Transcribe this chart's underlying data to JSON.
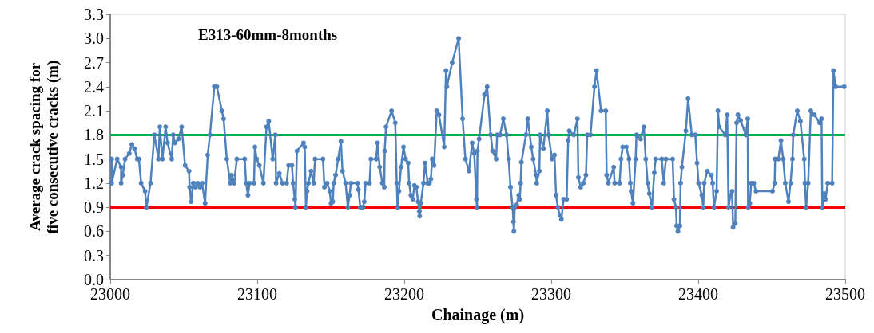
{
  "chart_data": {
    "type": "line",
    "annotations": [
      "E313-60mm-8months"
    ],
    "xlabel": "Chainage (m)",
    "ylabel": "Average crack spacing for\nfive consecutive cracks (m)",
    "series": [
      {
        "color": "#4f81bd",
        "x": [
          23001,
          23001,
          23004.7,
          23007.4,
          23007.4,
          23008.5,
          23010.1,
          23012.9,
          23014.7,
          23016.5,
          23018.3,
          23019.5,
          23021,
          23023.7,
          23024.6,
          23027.4,
          23030,
          23032.8,
          23033.7,
          23035.5,
          23037.7,
          23039,
          23041.8,
          23042.8,
          23044,
          23046.4,
          23048.6,
          23050.9,
          23053.6,
          23054,
          23055,
          23056.5,
          23058,
          23059.5,
          23061,
          23062.5,
          23064.5,
          23066.3,
          23067.8,
          23070.8,
          23072.5,
          23075.9,
          23077.1,
          23079.3,
          23081.6,
          23082.5,
          23084.3,
          23086.1,
          23091.5,
          23092.4,
          23093.7,
          23094.8,
          23097.8,
          23098.4,
          23099.6,
          23101.4,
          23104.2,
          23106.3,
          23107.8,
          23110.5,
          23112.3,
          23112.8,
          23115,
          23117.2,
          23120,
          23121.3,
          23123.6,
          23124.4,
          23125.5,
          23126,
          23127,
          23131.5,
          23132.3,
          23133.1,
          23133.9,
          23134.8,
          23136.6,
          23138.4,
          23139.3,
          23144.7,
          23145.7,
          23147.5,
          23149.3,
          23150.2,
          23151.4,
          23152,
          23153.3,
          23155,
          23156.9,
          23158,
          23160.1,
          23161.6,
          23162.8,
          23163.7,
          23168.2,
          23168.8,
          23170.1,
          23171.9,
          23172.8,
          23173.7,
          23176.4,
          23177.3,
          23180.9,
          23181.8,
          23183.3,
          23185.1,
          23186.4,
          23186.7,
          23187.6,
          23191.4,
          23193.9,
          23194.9,
          23195.4,
          23196.4,
          23197.8,
          23199.5,
          23200.9,
          23202.7,
          23203.3,
          23204.5,
          23205.8,
          23206.9,
          23208.2,
          23209.4,
          23210.3,
          23210.5,
          23211.2,
          23213.1,
          23214.1,
          23216,
          23217.2,
          23218.1,
          23219,
          23220.3,
          23222.1,
          23223.6,
          23227.2,
          23228.4,
          23229,
          23232.6,
          23237,
          23239.7,
          23241.6,
          23244,
          23246.2,
          23247.6,
          23249.1,
          23249.5,
          23249.8,
          23250.9,
          23254.6,
          23256.4,
          23258.8,
          23260.1,
          23262.5,
          23263.2,
          23265.2,
          23267.4,
          23269.6,
          23271,
          23272.3,
          23273.7,
          23274.3,
          23274.6,
          23275.2,
          23276.5,
          23277.9,
          23278.6,
          23279.2,
          23279.7,
          23282.8,
          23284.1,
          23286.4,
          23287.7,
          23289.7,
          23290.1,
          23291.9,
          23292.4,
          23294.6,
          23297.3,
          23298.2,
          23300.5,
          23302.2,
          23303.3,
          23304.5,
          23305.8,
          23306.9,
          23308.4,
          23310.5,
          23311.5,
          23312.2,
          23315.4,
          23317.8,
          23318.5,
          23320,
          23321.8,
          23323.6,
          23324.5,
          23326.7,
          23329.4,
          23330.8,
          23333.9,
          23337.1,
          23337.7,
          23338.9,
          23342.5,
          23343.1,
          23346.5,
          23347.5,
          23348.6,
          23351.1,
          23352.9,
          23353.8,
          23354.3,
          23355.6,
          23357.4,
          23358,
          23360.7,
          23363,
          23364.3,
          23365.6,
          23366.7,
          23368.5,
          23370.1,
          23371,
          23375.2,
          23376.5,
          23378,
          23382.6,
          23383.5,
          23384.9,
          23385.3,
          23386.2,
          23387.5,
          23388,
          23388.9,
          23391.6,
          23393.1,
          23395.6,
          23398,
          23399.2,
          23400.2,
          23402.5,
          23403.4,
          23404,
          23406.2,
          23408.9,
          23409.8,
          23410.7,
          23412.5,
          23413.4,
          23414.3,
          23418.3,
          23419.7,
          23420.6,
          23421.9,
          23423,
          23423.7,
          23425.2,
          23426.1,
          23427,
          23428.8,
          23432.4,
          23433.7,
          23433.9,
          23435.1,
          23436,
          23437.8,
          23439.3,
          23450.5,
          23452,
          23452.3,
          23454.5,
          23456.3,
          23457.8,
          23459.2,
          23461.4,
          23462.8,
          23464.1,
          23464.6,
          23467.4,
          23469.5,
          23472.1,
          23472.6,
          23473.4,
          23474.8,
          23476.6,
          23479,
          23482.6,
          23483.9,
          23484.4,
          23485.7,
          23486.6,
          23488.1,
          23491.1,
          23492,
          23493.5,
          23499.3
        ],
        "values": [
          1.5,
          1.2,
          1.5,
          1.4,
          1.2,
          1.3,
          1.5,
          1.57,
          1.68,
          1.63,
          1.5,
          1.5,
          1.2,
          1.1,
          0.9,
          1.2,
          1.8,
          1.5,
          1.9,
          1.5,
          1.9,
          1.7,
          1.5,
          1.8,
          1.7,
          1.75,
          1.9,
          1.42,
          1.35,
          1.15,
          0.97,
          1.2,
          1.15,
          1.2,
          1.15,
          1.2,
          0.95,
          1.55,
          1.8,
          2.4,
          2.4,
          2.1,
          2.0,
          1.5,
          1.2,
          1.3,
          1.2,
          1.5,
          1.5,
          1.2,
          1.05,
          1.2,
          1.2,
          1.65,
          1.5,
          1.42,
          1.2,
          1.9,
          1.97,
          1.5,
          1.8,
          1.2,
          1.32,
          1.2,
          1.2,
          1.42,
          1.42,
          1.2,
          1.0,
          0.9,
          1.6,
          1.7,
          1.65,
          0.9,
          1.1,
          1.2,
          1.35,
          1.2,
          1.5,
          1.5,
          1.15,
          1.2,
          1.1,
          0.95,
          0.97,
          1.2,
          1.3,
          1.5,
          1.72,
          1.35,
          1.2,
          0.9,
          1.05,
          1.2,
          1.2,
          1.12,
          0.9,
          0.9,
          0.97,
          1.2,
          1.2,
          1.5,
          1.5,
          1.7,
          1.4,
          1.2,
          1.15,
          1.6,
          1.9,
          2.1,
          1.95,
          1.2,
          0.9,
          1.1,
          1.4,
          1.65,
          1.5,
          1.45,
          1.2,
          1.05,
          1.0,
          1.17,
          1.15,
          0.97,
          0.85,
          0.79,
          0.95,
          1.2,
          1.45,
          1.2,
          1.2,
          1.25,
          1.5,
          1.42,
          2.1,
          2.05,
          1.65,
          2.6,
          2.4,
          2.7,
          3.0,
          2.0,
          1.5,
          1.35,
          1.7,
          1.57,
          1.0,
          0.9,
          1.6,
          1.75,
          2.3,
          2.4,
          1.8,
          1.6,
          1.5,
          1.8,
          1.8,
          2.0,
          1.8,
          1.5,
          1.15,
          0.9,
          0.72,
          0.6,
          0.9,
          0.93,
          1.05,
          1.0,
          1.2,
          1.46,
          1.8,
          2.0,
          1.65,
          1.5,
          1.3,
          1.2,
          1.35,
          1.8,
          1.63,
          2.1,
          1.8,
          1.5,
          1.55,
          1.05,
          0.9,
          0.8,
          0.75,
          1.0,
          1.0,
          1.73,
          1.85,
          1.8,
          2.0,
          1.27,
          1.15,
          1.2,
          1.3,
          1.8,
          1.8,
          2.4,
          2.6,
          2.1,
          2.1,
          1.3,
          1.2,
          1.4,
          1.2,
          1.2,
          1.5,
          1.65,
          1.65,
          1.5,
          1.2,
          1.1,
          0.95,
          1.5,
          1.8,
          1.75,
          1.9,
          1.5,
          1.2,
          1.07,
          0.9,
          1.33,
          1.5,
          1.5,
          1.2,
          1.5,
          1.5,
          1.0,
          0.9,
          0.67,
          0.6,
          0.67,
          1.2,
          1.4,
          1.85,
          2.25,
          1.8,
          1.8,
          1.45,
          1.2,
          1.05,
          0.9,
          1.2,
          1.35,
          1.3,
          1.2,
          0.9,
          1.1,
          2.1,
          1.9,
          1.8,
          2.05,
          0.9,
          1.05,
          1.1,
          0.65,
          0.7,
          1.95,
          2.05,
          1.98,
          1.8,
          2.0,
          0.9,
          0.95,
          1.2,
          1.2,
          1.1,
          1.1,
          1.2,
          1.5,
          1.5,
          1.73,
          1.5,
          1.2,
          0.97,
          1.2,
          1.5,
          1.8,
          2.1,
          1.97,
          1.5,
          1.2,
          0.9,
          1.2,
          2.1,
          2.05,
          1.95,
          2.0,
          0.9,
          1.07,
          1.0,
          1.2,
          1.2,
          2.6,
          2.4,
          2.4
        ]
      }
    ],
    "xlim": [
      23000,
      23500
    ],
    "xticks": [
      23000,
      23100,
      23200,
      23300,
      23400,
      23500
    ],
    "ylim": [
      0,
      3.3
    ],
    "yticks": [
      {
        "value": 0,
        "label": "0.0"
      },
      0.3,
      0.6,
      0.9,
      1.2,
      1.5,
      1.8,
      2.1,
      2.4,
      2.7,
      {
        "value": 3,
        "label": "3.0"
      },
      3.3
    ],
    "ref_lines": [
      {
        "axis": "y",
        "value": 1.8,
        "color": "#00b050"
      },
      {
        "axis": "y",
        "value": 0.9,
        "color": "#ff0000"
      }
    ],
    "marker": "circle",
    "line_style": "solid",
    "grid": false
  }
}
